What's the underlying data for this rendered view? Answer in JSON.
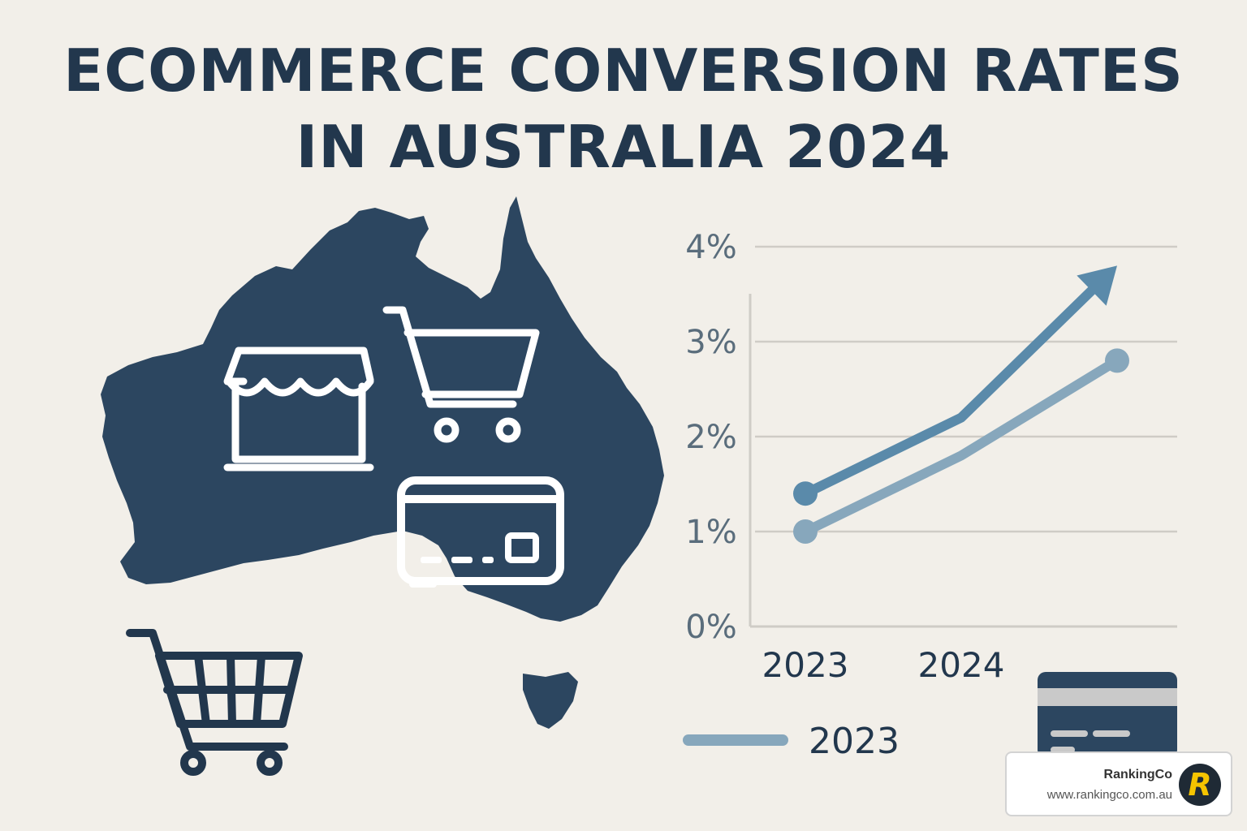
{
  "title": {
    "line1": "ECOMMERCE CONVERSION RATES",
    "line2": "IN AUSTRALIA 2024"
  },
  "icons": [
    "australia-map-icon",
    "storefront-icon",
    "shopping-cart-icon",
    "credit-card-icon"
  ],
  "colors": {
    "background": "#f2efe9",
    "navy": "#22374d",
    "series_dark": "#5a8aaa",
    "series_light": "#87a7bc",
    "grid": "#cfccc6"
  },
  "chart_data": {
    "type": "line",
    "y_ticks": [
      "0%",
      "1%",
      "2%",
      "3%",
      "4%"
    ],
    "ylim": [
      0,
      4
    ],
    "x_labels": [
      "2023",
      "2024"
    ],
    "grid": true,
    "legend": {
      "label": "2023",
      "placement": "bottom"
    },
    "series": [
      {
        "values": [
          1.4,
          2.2,
          3.8
        ],
        "arrow": true,
        "color": "#5a8aaa"
      },
      {
        "values": [
          1.0,
          1.8,
          2.8
        ],
        "arrow": false,
        "color": "#87a7bc"
      }
    ],
    "x_positions": [
      0,
      1,
      2
    ]
  },
  "badge": {
    "name": "RankingCo",
    "url": "www.rankingco.com.au",
    "logo_letter": "R"
  }
}
